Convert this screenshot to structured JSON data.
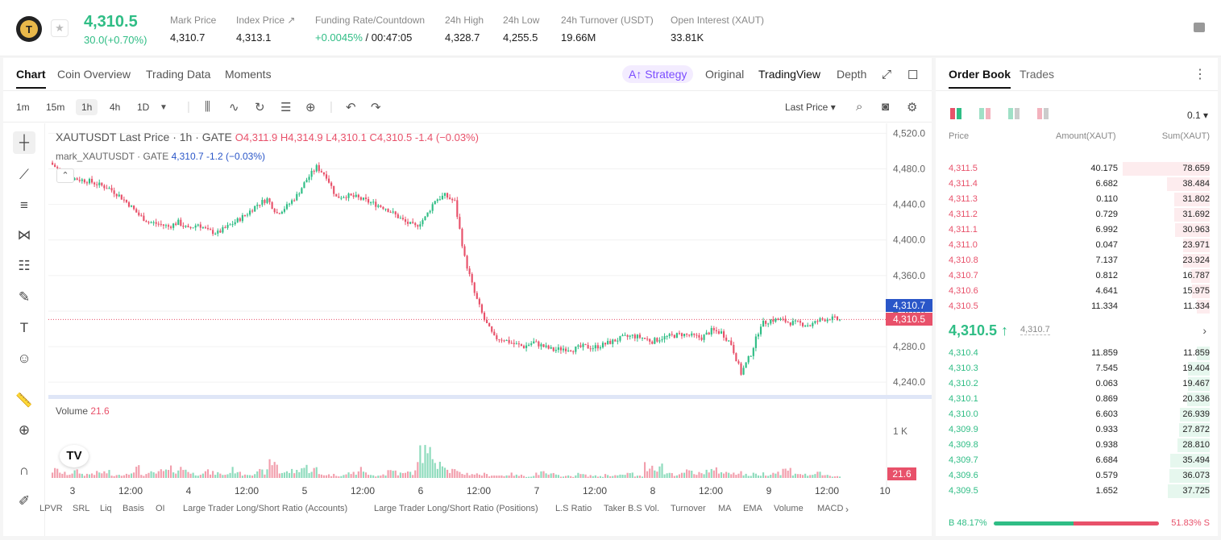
{
  "header": {
    "last_price": "4,310.5",
    "change": "30.0(+0.70%)",
    "stats": [
      {
        "label": "Mark Price",
        "value": "4,310.7"
      },
      {
        "label": "Index Price ↗",
        "value": "4,313.1"
      },
      {
        "label": "Funding Rate/Countdown",
        "value_green": "+0.0045%",
        "value": " / 00:47:05"
      },
      {
        "label": "24h High",
        "value": "4,328.7"
      },
      {
        "label": "24h Low",
        "value": "4,255.5"
      },
      {
        "label": "24h Turnover (USDT)",
        "value": "19.66M"
      },
      {
        "label": "Open Interest (XAUT)",
        "value": "33.81K"
      }
    ]
  },
  "chart_tabs": {
    "chart": "Chart",
    "coin_overview": "Coin Overview",
    "trading_data": "Trading Data",
    "moments": "Moments",
    "strategy": "A↑ Strategy",
    "original": "Original",
    "tradingview": "TradingView",
    "depth": "Depth"
  },
  "toolbar": {
    "timeframes": [
      "1m",
      "15m",
      "1h",
      "4h",
      "1D"
    ],
    "active_tf": "1h",
    "last_price_label": "Last Price"
  },
  "legend": {
    "title": "XAUTUSDT Last Price · 1h · GATE",
    "ohlc": "O4,311.9 H4,314.9 L4,310.1 C4,310.5 -1.4 (−0.03%)",
    "mark_name": "mark_XAUTUSDT · GATE",
    "mark_value": "4,310.7 -1.2 (−0.03%)",
    "volume_label": "Volume",
    "volume_value": "21.6"
  },
  "price_badges": {
    "mark": "4,310.7",
    "last": "4,310.5",
    "volume": "21.6"
  },
  "indicators": [
    "LPVR",
    "SRL",
    "Liq",
    "Basis",
    "OI",
    "Large Trader Long/Short Ratio (Accounts)",
    "Large Trader Long/Short Ratio (Positions)",
    "L.S Ratio",
    "Taker B.S Vol.",
    "Turnover",
    "MA",
    "EMA",
    "Volume",
    "MACD"
  ],
  "chart_data": {
    "type": "candlestick",
    "title": "XAUTUSDT Last Price · 1h · GATE",
    "y_axis_ticks": [
      "4,520.0",
      "4,480.0",
      "4,440.0",
      "4,400.0",
      "4,360.0",
      "4,320.0",
      "4,280.0",
      "4,240.0"
    ],
    "ylim": [
      4232,
      4524
    ],
    "x_axis_ticks": [
      "3",
      "12:00",
      "4",
      "12:00",
      "5",
      "12:00",
      "6",
      "12:00",
      "7",
      "12:00",
      "8",
      "12:00",
      "9",
      "12:00",
      "10"
    ],
    "volume_ticks": [
      "1 K"
    ],
    "series": [
      {
        "name": "price_path",
        "values": [
          4487,
          4478,
          4470,
          4468,
          4466,
          4462,
          4458,
          4450,
          4440,
          4428,
          4420,
          4418,
          4415,
          4420,
          4412,
          4418,
          4410,
          4408,
          4415,
          4422,
          4430,
          4440,
          4446,
          4430,
          4438,
          4450,
          4468,
          4482,
          4472,
          4448,
          4450,
          4448,
          4444,
          4440,
          4436,
          4428,
          4420,
          4415,
          4425,
          4445,
          4450,
          4443,
          4380,
          4340,
          4310,
          4290,
          4288,
          4283,
          4280,
          4285,
          4280,
          4276,
          4278,
          4277,
          4280,
          4279,
          4282,
          4286,
          4290,
          4292,
          4290,
          4286,
          4290,
          4292,
          4294,
          4292,
          4290,
          4298,
          4296,
          4283,
          4250,
          4272,
          4305,
          4310,
          4310,
          4307,
          4306,
          4304,
          4310,
          4312,
          4310
        ]
      },
      {
        "name": "volume",
        "values": [
          120,
          70,
          100,
          60,
          80,
          90,
          40,
          70,
          150,
          60,
          80,
          110,
          140,
          150,
          70,
          100,
          80,
          60,
          130,
          70,
          80,
          100,
          260,
          90,
          110,
          170,
          140,
          60,
          50,
          50,
          80,
          130,
          40,
          60,
          120,
          70,
          90,
          420,
          370,
          300,
          120,
          80,
          70,
          60,
          50,
          40,
          60,
          40,
          30,
          80,
          60,
          40,
          30,
          60,
          40,
          30,
          50,
          40,
          70,
          30,
          200,
          190,
          80,
          60,
          100,
          70,
          120,
          120,
          80,
          100,
          50,
          60,
          70,
          90,
          130,
          80,
          50,
          70,
          40,
          30,
          60
        ]
      }
    ]
  },
  "orderbook": {
    "tabs": [
      "Order Book",
      "Trades"
    ],
    "precision": "0.1",
    "headers": {
      "price": "Price",
      "amount": "Amount(XAUT)",
      "sum": "Sum(XAUT)"
    },
    "asks": [
      {
        "price": "4,311.5",
        "amount": "40.175",
        "sum": "78.659"
      },
      {
        "price": "4,311.4",
        "amount": "6.682",
        "sum": "38.484"
      },
      {
        "price": "4,311.3",
        "amount": "0.110",
        "sum": "31.802"
      },
      {
        "price": "4,311.2",
        "amount": "0.729",
        "sum": "31.692"
      },
      {
        "price": "4,311.1",
        "amount": "6.992",
        "sum": "30.963"
      },
      {
        "price": "4,311.0",
        "amount": "0.047",
        "sum": "23.971"
      },
      {
        "price": "4,310.8",
        "amount": "7.137",
        "sum": "23.924"
      },
      {
        "price": "4,310.7",
        "amount": "0.812",
        "sum": "16.787"
      },
      {
        "price": "4,310.6",
        "amount": "4.641",
        "sum": "15.975"
      },
      {
        "price": "4,310.5",
        "amount": "11.334",
        "sum": "11.334"
      }
    ],
    "mid_price": "4,310.5 ↑",
    "mid_mark": "4,310.7",
    "bids": [
      {
        "price": "4,310.4",
        "amount": "11.859",
        "sum": "11.859"
      },
      {
        "price": "4,310.3",
        "amount": "7.545",
        "sum": "19.404"
      },
      {
        "price": "4,310.2",
        "amount": "0.063",
        "sum": "19.467"
      },
      {
        "price": "4,310.1",
        "amount": "0.869",
        "sum": "20.336"
      },
      {
        "price": "4,310.0",
        "amount": "6.603",
        "sum": "26.939"
      },
      {
        "price": "4,309.9",
        "amount": "0.933",
        "sum": "27.872"
      },
      {
        "price": "4,309.8",
        "amount": "0.938",
        "sum": "28.810"
      },
      {
        "price": "4,309.7",
        "amount": "6.684",
        "sum": "35.494"
      },
      {
        "price": "4,309.6",
        "amount": "0.579",
        "sum": "36.073"
      },
      {
        "price": "4,309.5",
        "amount": "1.652",
        "sum": "37.725"
      }
    ],
    "buy_ratio": "B 48.17%",
    "sell_ratio": "51.83% S",
    "buy_pct": 48.17
  },
  "colors": {
    "up": "#2fbd85",
    "down": "#e8516a",
    "mark": "#2a56c8"
  }
}
